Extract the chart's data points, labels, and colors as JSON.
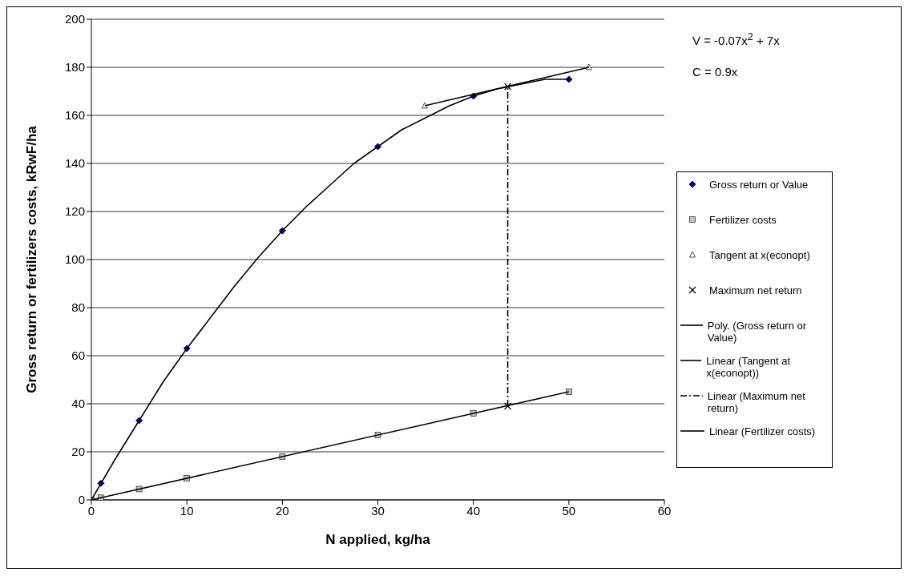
{
  "chart_data": {
    "type": "scatter",
    "xlabel": "N applied, kg/ha",
    "ylabel": "Gross return or fertilizers costs, kRwF/ha",
    "annotations": [
      "V = -0.07x$^{2}$ + 7x",
      "C = 0.9x"
    ],
    "xlim": [
      0,
      60
    ],
    "xticks": [
      0,
      10,
      20,
      30,
      40,
      50,
      60
    ],
    "ylim": [
      0,
      200
    ],
    "yticks": [
      0,
      20,
      40,
      60,
      80,
      100,
      120,
      140,
      160,
      180,
      200
    ],
    "grid": "y",
    "legend": "right",
    "series": [
      {
        "name": "Gross return or Value",
        "marker": "diamond",
        "color": "#000080",
        "x": [
          1,
          5,
          10,
          20,
          30,
          40,
          50
        ],
        "values": [
          6.9,
          33,
          63,
          112,
          147,
          168,
          175
        ]
      },
      {
        "name": "Fertilizer costs",
        "marker": "square",
        "color": "#c0c0c0",
        "x": [
          0,
          1,
          5,
          10,
          20,
          30,
          40,
          50
        ],
        "values": [
          0,
          0.9,
          4.5,
          9,
          18,
          27,
          36,
          45
        ]
      },
      {
        "name": "Tangent at x(econopt)",
        "marker": "triangle",
        "color": "#ffffff",
        "x": [
          34.9,
          52.1
        ],
        "values": [
          164,
          180
        ]
      },
      {
        "name": "Maximum net return",
        "marker": "cross",
        "color": "#000000",
        "x": [
          43.6,
          43.6
        ],
        "values": [
          172,
          39
        ]
      },
      {
        "name": "Poly. (Gross return or Value)",
        "type": "line",
        "marker": "none",
        "line_style": "solid",
        "color": "#000000",
        "x": [
          0,
          2.5,
          5,
          7.5,
          10,
          12.5,
          15,
          17.5,
          20,
          22.5,
          25,
          27.5,
          30,
          32.5,
          35,
          37.5,
          40,
          42.5,
          45,
          47.5,
          50
        ],
        "values": [
          0,
          17,
          33,
          49,
          63,
          76,
          89,
          101,
          112,
          122,
          131,
          140,
          147,
          154,
          159,
          164,
          168,
          171,
          173,
          175,
          175
        ]
      },
      {
        "name": "Linear (Tangent at x(econopt))",
        "type": "line",
        "marker": "none",
        "line_style": "solid",
        "color": "#000000",
        "x": [
          34.9,
          52.1
        ],
        "values": [
          164,
          180
        ]
      },
      {
        "name": "Linear (Maximum net return)",
        "type": "line",
        "marker": "none",
        "line_style": "dashed",
        "color": "#000000",
        "x": [
          43.6,
          43.6
        ],
        "values": [
          39,
          172
        ]
      },
      {
        "name": "Linear (Fertilizer costs)",
        "type": "line",
        "marker": "none",
        "line_style": "solid",
        "color": "#000000",
        "x": [
          0,
          50
        ],
        "values": [
          0,
          45
        ]
      }
    ]
  }
}
